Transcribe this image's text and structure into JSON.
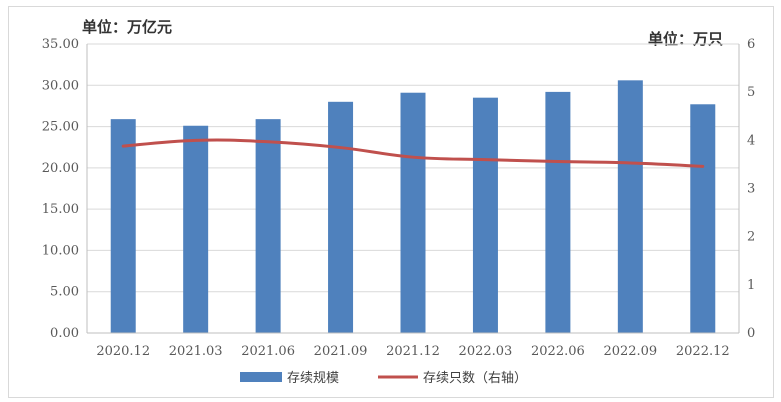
{
  "unit_left": "单位：万亿元",
  "unit_right": "单位：万只",
  "chart_data": {
    "type": "bar",
    "categories": [
      "2020.12",
      "2021.03",
      "2021.06",
      "2021.09",
      "2021.12",
      "2022.03",
      "2022.06",
      "2022.09",
      "2022.12"
    ],
    "series": [
      {
        "name": "存续规模",
        "type": "bar",
        "axis": "left",
        "values": [
          25.9,
          25.1,
          25.9,
          28.0,
          29.1,
          28.5,
          29.2,
          30.6,
          27.7
        ],
        "color": "#4f81bd"
      },
      {
        "name": "存续只数（右轴）",
        "type": "line",
        "axis": "right",
        "values": [
          3.88,
          4.0,
          3.97,
          3.85,
          3.65,
          3.6,
          3.56,
          3.53,
          3.46
        ],
        "color": "#c0504d"
      }
    ],
    "y_left": {
      "ylim": [
        0,
        35
      ],
      "ticks": [
        "0.00",
        "5.00",
        "10.00",
        "15.00",
        "20.00",
        "25.00",
        "30.00",
        "35.00"
      ]
    },
    "y_right": {
      "ylim": [
        0,
        6
      ],
      "ticks": [
        "0",
        "1",
        "2",
        "3",
        "4",
        "5",
        "6"
      ]
    },
    "grid": true,
    "legend_position": "bottom"
  }
}
